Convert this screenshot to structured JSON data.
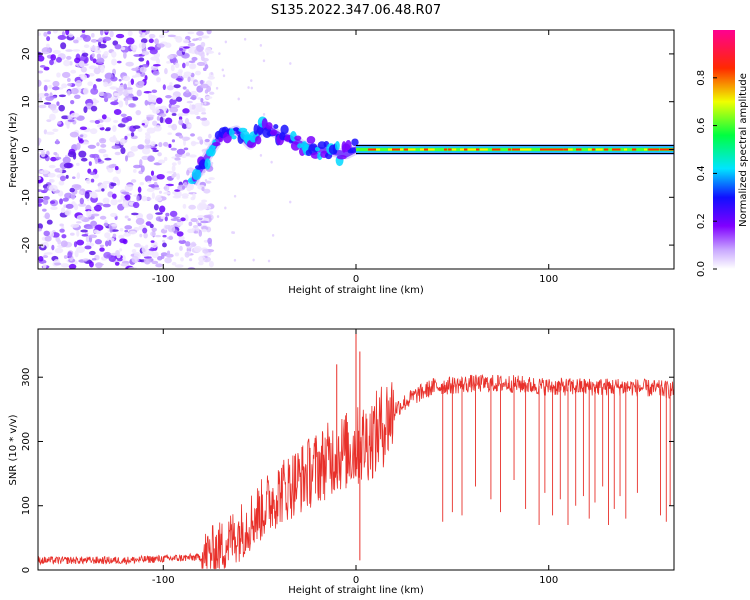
{
  "title": "S135.2022.347.06.48.R07",
  "chart_data": [
    {
      "type": "heatmap",
      "name": "spectrogram",
      "xlabel": "Height of straight line (km)",
      "ylabel": "Frequency (Hz)",
      "xlim": [
        -165,
        165
      ],
      "ylim": [
        -25,
        25
      ],
      "xticks": [
        -100,
        0,
        100
      ],
      "xtick_labels": [
        "-100",
        "0",
        "100"
      ],
      "yticks": [
        -20,
        -10,
        0,
        10,
        20
      ],
      "ytick_labels": [
        "-20",
        "-10",
        "0",
        "10",
        "20"
      ],
      "colorbar": {
        "label": "Normalized spectral amplitude",
        "range": [
          0,
          1
        ],
        "ticks": [
          0,
          0.2,
          0.4,
          0.6,
          0.8
        ],
        "tick_labels": [
          "0.0",
          "0.2",
          "0.4",
          "0.6",
          "0.8"
        ],
        "colors": [
          "#ffffff",
          "#8000ff",
          "#0000ff",
          "#00ffff",
          "#00ff00",
          "#ffff00",
          "#ff0000",
          "#ff00a0"
        ]
      },
      "description_points": {
        "noise_region_x": [
          -165,
          -80
        ],
        "ridge": {
          "x": [
            -85,
            -78,
            -70,
            -62,
            -55,
            -48,
            -40,
            -35,
            -28,
            -20,
            -12,
            -5,
            0,
            10,
            50,
            100,
            165
          ],
          "y": [
            -7,
            -2,
            3,
            4,
            1,
            5,
            3,
            2.5,
            1,
            0,
            -0.5,
            -1,
            0,
            0,
            0,
            0,
            0
          ]
        }
      }
    },
    {
      "type": "line",
      "name": "snr",
      "xlabel": "Height of straight line (km)",
      "ylabel": "SNR (10 * v/v)",
      "xlim": [
        -165,
        165
      ],
      "ylim": [
        0,
        375
      ],
      "xticks": [
        -100,
        0,
        100
      ],
      "xtick_labels": [
        "-100",
        "0",
        "100"
      ],
      "yticks": [
        0,
        100,
        200,
        300
      ],
      "ytick_labels": [
        "0",
        "100",
        "200",
        "300"
      ],
      "color": "#e8302a",
      "series": [
        {
          "name": "snr",
          "x": [
            -165,
            -120,
            -80,
            -70,
            -60,
            -50,
            -40,
            -30,
            -20,
            -10,
            0,
            10,
            20,
            30,
            40,
            60,
            80,
            100,
            120,
            140,
            165
          ],
          "y": [
            15,
            15,
            20,
            35,
            60,
            90,
            120,
            140,
            160,
            180,
            190,
            210,
            250,
            270,
            285,
            290,
            290,
            285,
            285,
            285,
            280
          ]
        }
      ],
      "spikes_down": {
        "x": [
          45,
          50,
          55,
          62,
          70,
          75,
          82,
          88,
          95,
          98,
          102,
          106,
          110,
          114,
          118,
          121,
          124,
          128,
          131,
          134,
          137,
          140,
          146,
          158,
          161,
          163
        ],
        "y": [
          75,
          90,
          85,
          130,
          110,
          90,
          140,
          95,
          70,
          120,
          85,
          110,
          70,
          100,
          115,
          80,
          105,
          130,
          70,
          95,
          115,
          80,
          120,
          85,
          75,
          100
        ]
      },
      "spikes_up": {
        "x": [
          -10,
          0,
          2
        ],
        "y": [
          320,
          375,
          340
        ]
      }
    }
  ]
}
